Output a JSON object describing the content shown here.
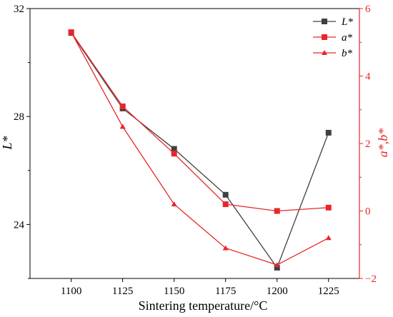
{
  "chart_data": {
    "type": "line",
    "x": [
      1100,
      1125,
      1150,
      1175,
      1200,
      1225
    ],
    "xlabel": "Sintering temperature/°C",
    "xlim": [
      1080,
      1240
    ],
    "x_ticks": [
      1100,
      1125,
      1150,
      1175,
      1200,
      1225
    ],
    "ylabel_left": "L*",
    "ylabel_right": "a*,b*",
    "ylim_left": [
      22,
      32
    ],
    "ylim_right": [
      -2,
      6
    ],
    "y_ticks_left": [
      24,
      28,
      32
    ],
    "y_ticks_right": [
      -2,
      0,
      2,
      4,
      6
    ],
    "right_axis_color": "#e8262a",
    "grid": false,
    "legend_position": "top-right",
    "series": [
      {
        "name": "L*",
        "axis": "left",
        "marker": "square",
        "color": "#404040",
        "values": [
          31.1,
          28.3,
          26.8,
          25.1,
          22.4,
          27.4
        ]
      },
      {
        "name": "a*",
        "axis": "right",
        "marker": "square",
        "color": "#e8262a",
        "values": [
          5.3,
          3.1,
          1.7,
          0.2,
          0.0,
          0.1
        ]
      },
      {
        "name": "b*",
        "axis": "right",
        "marker": "triangle",
        "color": "#e8262a",
        "values": [
          5.3,
          2.5,
          0.2,
          -1.1,
          -1.6,
          -0.8
        ]
      }
    ]
  }
}
